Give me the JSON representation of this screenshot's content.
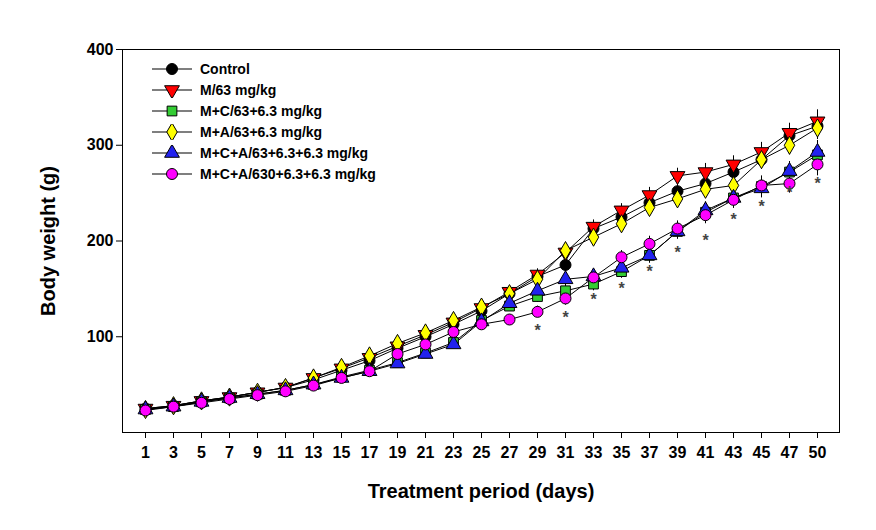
{
  "chart_data": {
    "type": "line",
    "x_label": "Treatment period (days)",
    "y_label": "Body weight (g)",
    "categories": [
      "1",
      "3",
      "5",
      "7",
      "9",
      "11",
      "13",
      "15",
      "17",
      "19",
      "21",
      "23",
      "25",
      "27",
      "29",
      "31",
      "33",
      "35",
      "37",
      "39",
      "41",
      "43",
      "45",
      "47",
      "50"
    ],
    "ylim": [
      0,
      400
    ],
    "yticks": [
      100,
      200,
      300,
      400
    ],
    "legend": "top-left",
    "grid": false,
    "series": [
      {
        "name": "Control",
        "color": "#000000",
        "marker": "circle",
        "values": [
          25,
          28,
          33,
          37,
          42,
          47,
          55,
          65,
          75,
          88,
          100,
          113,
          127,
          145,
          163,
          175,
          213,
          225,
          240,
          252,
          260,
          272,
          285,
          310,
          320
        ],
        "errors": [
          2,
          2,
          2,
          2,
          2,
          2,
          2,
          3,
          3,
          3,
          4,
          4,
          5,
          5,
          6,
          7,
          7,
          7,
          8,
          8,
          9,
          9,
          10,
          10,
          12
        ]
      },
      {
        "name": "M/63 mg/kg",
        "color": "#ff0000",
        "marker": "triangle-down",
        "values": [
          25,
          28,
          33,
          37,
          42,
          47,
          57,
          67,
          78,
          90,
          102,
          115,
          130,
          147,
          165,
          188,
          215,
          232,
          248,
          268,
          272,
          280,
          293,
          313,
          325
        ],
        "errors": [
          2,
          2,
          2,
          2,
          2,
          2,
          2,
          3,
          3,
          3,
          4,
          4,
          5,
          5,
          6,
          7,
          7,
          7,
          8,
          8,
          9,
          9,
          10,
          10,
          12
        ]
      },
      {
        "name": "M+C/63+6.3 mg/kg",
        "color": "#33cc33",
        "marker": "square",
        "values": [
          24,
          27,
          32,
          36,
          40,
          44,
          50,
          58,
          65,
          73,
          83,
          94,
          117,
          132,
          142,
          148,
          155,
          168,
          185,
          210,
          230,
          245,
          257,
          272,
          290
        ],
        "errors": [
          2,
          2,
          2,
          2,
          2,
          2,
          2,
          3,
          3,
          3,
          4,
          4,
          5,
          5,
          6,
          7,
          7,
          7,
          8,
          8,
          9,
          9,
          10,
          10,
          12
        ]
      },
      {
        "name": "M+A/63+6.3 mg/kg",
        "color": "#ffff00",
        "marker": "diamond",
        "values": [
          24,
          28,
          33,
          37,
          42,
          47,
          57,
          68,
          80,
          93,
          104,
          117,
          131,
          145,
          160,
          190,
          204,
          218,
          235,
          244,
          254,
          258,
          285,
          300,
          318
        ],
        "errors": [
          2,
          2,
          2,
          2,
          2,
          2,
          2,
          3,
          3,
          3,
          4,
          4,
          5,
          5,
          6,
          7,
          7,
          7,
          8,
          8,
          9,
          9,
          10,
          10,
          12
        ]
      },
      {
        "name": "M+C+A/63+6.3+6.3 mg/kg",
        "color": "#2222ee",
        "marker": "triangle",
        "values": [
          24,
          27,
          32,
          36,
          40,
          44,
          50,
          57,
          64,
          72,
          82,
          92,
          116,
          135,
          148,
          160,
          163,
          172,
          185,
          210,
          232,
          245,
          255,
          273,
          293
        ],
        "errors": [
          2,
          2,
          2,
          2,
          2,
          2,
          2,
          3,
          3,
          3,
          4,
          4,
          5,
          5,
          6,
          7,
          7,
          7,
          8,
          8,
          9,
          9,
          10,
          10,
          12
        ]
      },
      {
        "name": "M+C+A/630+6.3+6.3 mg/kg",
        "color": "#ff00ff",
        "marker": "circle",
        "values": [
          23,
          27,
          31,
          35,
          39,
          43,
          49,
          57,
          64,
          82,
          92,
          105,
          113,
          118,
          126,
          140,
          162,
          183,
          197,
          213,
          227,
          243,
          258,
          260,
          280
        ],
        "errors": [
          2,
          2,
          2,
          2,
          2,
          2,
          2,
          3,
          3,
          3,
          4,
          4,
          5,
          5,
          6,
          7,
          7,
          7,
          8,
          8,
          9,
          9,
          10,
          10,
          12
        ]
      }
    ],
    "annotations": [
      {
        "category": "29",
        "y": 106,
        "text": "*"
      },
      {
        "category": "31",
        "y": 120,
        "text": "*"
      },
      {
        "category": "33",
        "y": 138,
        "text": "*"
      },
      {
        "category": "35",
        "y": 150,
        "text": "*"
      },
      {
        "category": "37",
        "y": 168,
        "text": "*"
      },
      {
        "category": "39",
        "y": 188,
        "text": "*"
      },
      {
        "category": "41",
        "y": 200,
        "text": "*"
      },
      {
        "category": "43",
        "y": 222,
        "text": "*"
      },
      {
        "category": "45",
        "y": 236,
        "text": "*"
      },
      {
        "category": "47",
        "y": 250,
        "text": "*"
      },
      {
        "category": "50",
        "y": 260,
        "text": "*"
      }
    ]
  }
}
